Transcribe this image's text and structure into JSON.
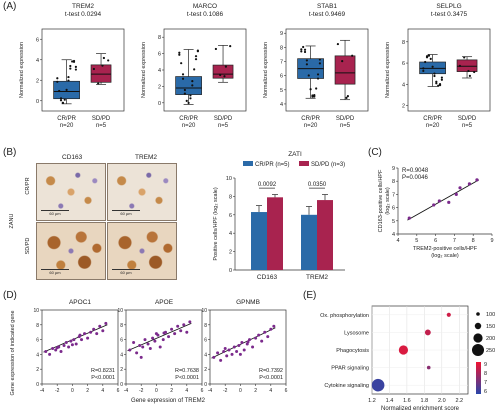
{
  "panels": {
    "A": {
      "letter": "(A)",
      "ylabel": "Normalized expression",
      "groups": [
        "CR/PR",
        "SD/PD"
      ],
      "ns": [
        "n=20",
        "n=5"
      ],
      "colors": {
        "crpr": "#2a6aa8",
        "sdpd": "#a8234f"
      },
      "plots": [
        {
          "gene": "TREM2",
          "test": "t-test 0.0294",
          "yticks": [
            "0",
            "2",
            "4",
            "6"
          ],
          "ylim": [
            -1,
            7
          ],
          "crpr": {
            "min": -0.3,
            "q1": 0.2,
            "median": 0.9,
            "q3": 1.9,
            "max": 4.0
          },
          "sdpd": {
            "min": 1.6,
            "q1": 1.8,
            "median": 2.6,
            "q3": 3.5,
            "max": 4.6
          }
        },
        {
          "gene": "MARCO",
          "test": "t-test 0.1086",
          "yticks": [
            "0",
            "2",
            "4",
            "6",
            "8"
          ],
          "ylim": [
            -1,
            9
          ],
          "crpr": {
            "min": -0.2,
            "q1": 1.0,
            "median": 1.8,
            "q3": 3.2,
            "max": 6.5
          },
          "sdpd": {
            "min": 2.5,
            "q1": 3.0,
            "median": 3.5,
            "q3": 4.6,
            "max": 7.0
          }
        },
        {
          "gene": "STAB1",
          "test": "t-test 0.9469",
          "yticks": [
            "4",
            "5",
            "6",
            "7",
            "8",
            "9"
          ],
          "ylim": [
            3.5,
            9.3
          ],
          "crpr": {
            "min": 4.4,
            "q1": 5.8,
            "median": 6.5,
            "q3": 7.2,
            "max": 8.1
          },
          "sdpd": {
            "min": 4.3,
            "q1": 5.4,
            "median": 6.2,
            "q3": 7.4,
            "max": 8.5
          }
        },
        {
          "gene": "SELPLG",
          "test": "t-test 0.3475",
          "yticks": [
            "2",
            "4",
            "6",
            "8"
          ],
          "ylim": [
            1.5,
            9.2
          ],
          "crpr": {
            "min": 3.8,
            "q1": 5.0,
            "median": 5.5,
            "q3": 6.1,
            "max": 6.8
          },
          "sdpd": {
            "min": 4.6,
            "q1": 5.2,
            "median": 5.7,
            "q3": 6.3,
            "max": 6.6
          }
        }
      ]
    },
    "B": {
      "letter": "(B)",
      "markers": [
        "CD163",
        "TREM2"
      ],
      "cohort_side": "ZANU",
      "rows": [
        "CR/PR",
        "SD/PD"
      ],
      "scale": "60 µm",
      "bar_title": "ZATI",
      "legend": [
        "CR/PR (n=5)",
        "SD/PD (n=3)"
      ],
      "ylabel": "Positive cells/HPF (log₂ scale)",
      "yticks": [
        "0",
        "2",
        "4",
        "6",
        "8",
        "10"
      ],
      "bar_chart": {
        "type": "bar",
        "categories": [
          "CD163",
          "TREM2"
        ],
        "series": [
          {
            "name": "CR/PR (n=5)",
            "values": [
              6.3,
              6.0
            ],
            "err": [
              0.7,
              0.9
            ]
          },
          {
            "name": "SD/PD (n=3)",
            "values": [
              7.9,
              7.6
            ],
            "err": [
              0.3,
              0.6
            ]
          }
        ],
        "pvalues": [
          "0.0092",
          "0.0350"
        ],
        "ylim": [
          0,
          10
        ]
      }
    },
    "C": {
      "letter": "(C)",
      "stats": [
        "R=0.9048",
        "P=0.0046"
      ],
      "xlabel": [
        "TREM2-positive cells/HPF",
        "(log₂ scale)"
      ],
      "ylabel": [
        "CD163-positive cells/HPF",
        "(log₂ scale)"
      ],
      "xticks": [
        "4",
        "5",
        "6",
        "7",
        "8",
        "9"
      ],
      "yticks": [
        "4",
        "5",
        "6",
        "7",
        "8",
        "9"
      ],
      "chart_data": {
        "type": "scatter",
        "x": [
          4.6,
          5.9,
          6.2,
          6.7,
          7.1,
          7.3,
          7.8,
          8.2
        ],
        "y": [
          5.2,
          6.2,
          6.5,
          6.4,
          7.0,
          7.5,
          7.8,
          8.1
        ],
        "xlim": [
          4,
          9
        ],
        "ylim": [
          4,
          9
        ]
      }
    },
    "D": {
      "letter": "(D)",
      "ylabel": "Gene expression of indicated gene",
      "xlabel": "Gene expression of TREM2",
      "xticks": [
        "-4",
        "-2",
        "0",
        "2",
        "4",
        "6"
      ],
      "yticks": [
        "0",
        "2",
        "4",
        "6",
        "8",
        "10"
      ],
      "color": "#7b2a8c",
      "plots": [
        {
          "gene": "APOC1",
          "stats": [
            "R=0.8231",
            "P<0.0001"
          ],
          "x": [
            -3.5,
            -3,
            -2.6,
            -2.2,
            -1.8,
            -1.5,
            -1.1,
            -0.8,
            -0.5,
            -0.2,
            0.2,
            0.5,
            0.9,
            1.2,
            1.6,
            2.0,
            2.4,
            2.8,
            3.2,
            3.6,
            4.0,
            4.4,
            -2.0,
            0.0,
            1.0
          ],
          "y": [
            4.4,
            4.0,
            4.8,
            4.6,
            5.0,
            4.4,
            5.2,
            5.6,
            5.0,
            5.8,
            6.0,
            5.4,
            6.4,
            6.0,
            6.8,
            6.2,
            7.0,
            7.4,
            6.8,
            7.8,
            7.2,
            8.2,
            4.9,
            5.3,
            6.6
          ]
        },
        {
          "gene": "APOE",
          "stats": [
            "R=0.7638",
            "P<0.0001"
          ],
          "x": [
            -3.5,
            -3,
            -2.6,
            -2.2,
            -1.8,
            -1.5,
            -1.1,
            -0.8,
            -0.5,
            -0.2,
            0.2,
            0.5,
            0.9,
            1.2,
            1.6,
            2.0,
            2.4,
            2.8,
            3.2,
            3.6,
            4.0,
            4.4,
            -2.0,
            0.0,
            1.0
          ],
          "y": [
            4.6,
            5.6,
            4.2,
            5.2,
            5.0,
            6.0,
            5.4,
            4.8,
            6.2,
            5.8,
            6.6,
            5.0,
            6.0,
            7.0,
            6.4,
            7.4,
            6.8,
            7.8,
            7.2,
            8.0,
            7.0,
            8.4,
            3.6,
            6.8,
            6.9
          ]
        },
        {
          "gene": "GPNMB",
          "stats": [
            "R=0.7392",
            "P<0.0001"
          ],
          "x": [
            -3.5,
            -3,
            -2.6,
            -2.2,
            -1.8,
            -1.5,
            -1.1,
            -0.8,
            -0.5,
            -0.2,
            0.2,
            0.5,
            0.9,
            1.2,
            1.6,
            2.0,
            2.4,
            2.8,
            3.2,
            3.6,
            4.0,
            4.4,
            -2.0,
            0.0,
            1.0
          ],
          "y": [
            3.6,
            4.2,
            3.2,
            4.4,
            3.8,
            4.6,
            4.0,
            5.0,
            4.4,
            5.2,
            5.6,
            4.6,
            5.4,
            6.0,
            5.0,
            6.2,
            6.6,
            5.8,
            7.0,
            6.4,
            7.4,
            7.8,
            4.8,
            4.0,
            5.7
          ]
        }
      ]
    },
    "E": {
      "letter": "(E)",
      "xlabel": "Normalized enrichment score",
      "xticks": [
        "1.2",
        "1.4",
        "1.6",
        "1.8",
        "2.0",
        "2.2"
      ],
      "size_legend": [
        "100",
        "150",
        "200",
        "250"
      ],
      "color_legend": [
        "9",
        "8",
        "7",
        "6"
      ],
      "chart_data": {
        "type": "scatter",
        "categories": [
          "Ox. phosphorylation",
          "Lysosome",
          "Phagocytosis",
          "PPAR signaling",
          "Cytokine signaling"
        ],
        "nes": [
          2.08,
          1.84,
          1.56,
          1.85,
          1.27
        ],
        "size": [
          110,
          140,
          200,
          100,
          260
        ],
        "color_value": [
          8.4,
          8.2,
          8.6,
          7.2,
          5.8
        ],
        "xlim": [
          1.2,
          2.3
        ]
      }
    }
  }
}
